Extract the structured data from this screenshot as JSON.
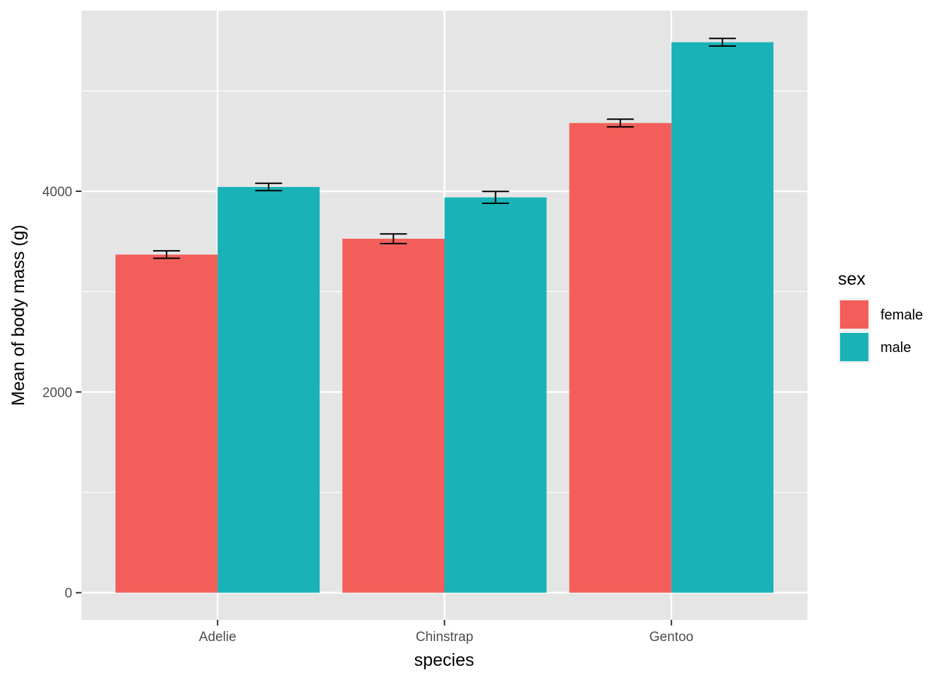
{
  "chart_data": {
    "type": "bar",
    "title": "",
    "xlabel": "species",
    "ylabel": "Mean of body mass (g)",
    "categories": [
      "Adelie",
      "Chinstrap",
      "Gentoo"
    ],
    "ylim": [
      -270,
      5800
    ],
    "yticks": [
      0,
      2000,
      4000
    ],
    "ytick_labels": [
      "0",
      "2000",
      "4000"
    ],
    "grid": true,
    "legend_position": "right",
    "legend_title": "sex",
    "series": [
      {
        "name": "female",
        "color": "#F35E5A",
        "values": [
          3369,
          3527,
          4680
        ],
        "error_low": [
          3332,
          3479,
          4642
        ],
        "error_high": [
          3406,
          3575,
          4718
        ]
      },
      {
        "name": "male",
        "color": "#19B3B7",
        "values": [
          4043,
          3939,
          5485
        ],
        "error_low": [
          4006,
          3880,
          5447
        ],
        "error_high": [
          4080,
          3998,
          5523
        ]
      }
    ],
    "panel_background": "#E5E5E5",
    "grid_color": "#FFFFFF"
  }
}
